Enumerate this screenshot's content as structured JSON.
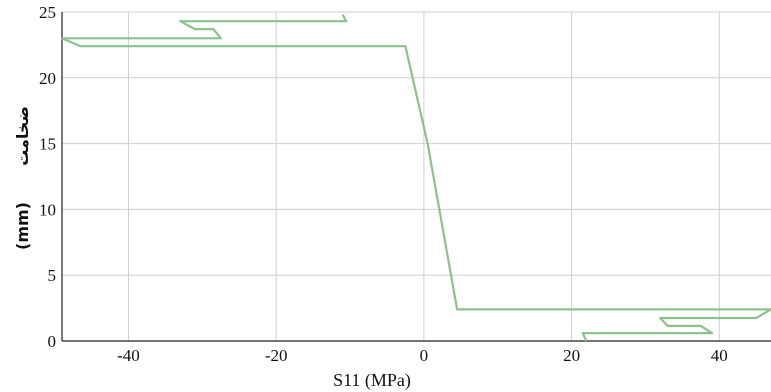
{
  "chart_data": {
    "type": "line",
    "title": "",
    "xlabel": "S11 (MPa)",
    "ylabel_fa": "ضخامت",
    "ylabel_unit": "(mm)",
    "xlim": [
      -49,
      47
    ],
    "ylim": [
      0,
      25
    ],
    "x_ticks": [
      -40,
      -20,
      0,
      20,
      40
    ],
    "x_tick_labels": [
      "-40",
      "-20",
      "0",
      "20",
      "40"
    ],
    "y_ticks": [
      0,
      5,
      10,
      15,
      20,
      25
    ],
    "y_tick_labels": [
      "0",
      "5",
      "10",
      "15",
      "20",
      "25"
    ],
    "grid": true,
    "line_color": "#8cc28c",
    "series": [
      {
        "name": "",
        "points": [
          [
            -11,
            24.8
          ],
          [
            -10.5,
            24.3
          ],
          [
            -33,
            24.3
          ],
          [
            -31,
            23.7
          ],
          [
            -28.5,
            23.7
          ],
          [
            -27.5,
            23.0
          ],
          [
            -49,
            23.0
          ],
          [
            -46.5,
            22.4
          ],
          [
            -2.5,
            22.4
          ],
          [
            0.5,
            15
          ],
          [
            4.5,
            2.4
          ],
          [
            47,
            2.4
          ],
          [
            45,
            1.75
          ],
          [
            32,
            1.75
          ],
          [
            33,
            1.15
          ],
          [
            37.5,
            1.15
          ],
          [
            39,
            0.6
          ],
          [
            21.5,
            0.6
          ],
          [
            22,
            0
          ]
        ]
      }
    ]
  }
}
